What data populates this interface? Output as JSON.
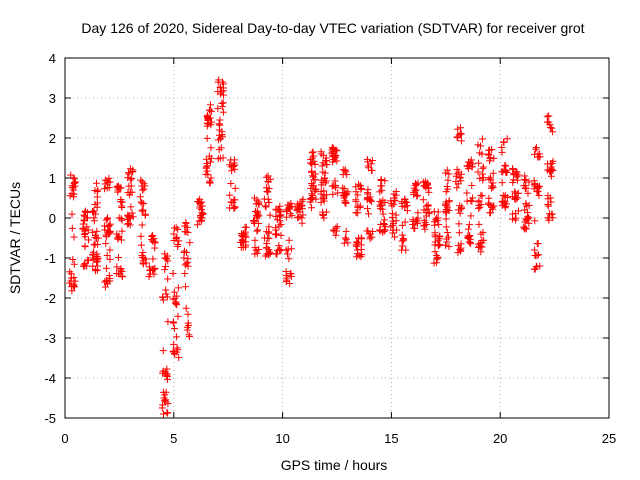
{
  "chart_data": {
    "type": "scatter",
    "title": "Day 126 of 2020, Sidereal Day-to-day VTEC variation (SDTVAR) for receiver grot",
    "xlabel": "GPS time / hours",
    "ylabel": "SDTVAR / TECUs",
    "xlim": [
      0,
      25
    ],
    "ylim": [
      -5,
      4
    ],
    "xticks": [
      0,
      5,
      10,
      15,
      20,
      25
    ],
    "yticks": [
      -5,
      -4,
      -3,
      -2,
      -1,
      0,
      1,
      2,
      3,
      4
    ],
    "grid": true,
    "marker": "+",
    "color": "#ff0000",
    "clusters": [
      {
        "x": 0.35,
        "y": [
          0.7,
          0.9,
          -1.5,
          -1.7
        ]
      },
      {
        "x": 0.95,
        "y": [
          0.0,
          -0.3,
          -1.2
        ]
      },
      {
        "x": 1.4,
        "y": [
          0.7,
          0.1,
          -0.5,
          -0.9,
          -1.2
        ]
      },
      {
        "x": 1.95,
        "y": [
          0.9,
          0.0,
          -0.3,
          -0.8,
          -1.6
        ]
      },
      {
        "x": 2.5,
        "y": [
          0.7,
          0.3,
          -0.5,
          -1.4
        ]
      },
      {
        "x": 3.0,
        "y": [
          1.1,
          0.8,
          0.0
        ]
      },
      {
        "x": 3.6,
        "y": [
          0.8,
          0.2,
          -1.0
        ]
      },
      {
        "x": 4.0,
        "y": [
          -0.6,
          -1.3
        ]
      },
      {
        "x": 4.6,
        "y": [
          -1.0,
          -1.9,
          -3.9,
          -4.5,
          -4.9
        ]
      },
      {
        "x": 5.1,
        "y": [
          -0.4,
          -2.1,
          -2.6,
          -3.4
        ]
      },
      {
        "x": 5.6,
        "y": [
          -0.2,
          -1.0,
          -2.8
        ]
      },
      {
        "x": 6.2,
        "y": [
          0.3,
          0.0
        ]
      },
      {
        "x": 6.6,
        "y": [
          2.7,
          2.5,
          1.4,
          1.0
        ]
      },
      {
        "x": 7.15,
        "y": [
          3.4,
          3.1,
          2.2,
          1.5
        ]
      },
      {
        "x": 7.7,
        "y": [
          1.3,
          0.4
        ]
      },
      {
        "x": 8.2,
        "y": [
          -0.4,
          -0.6
        ]
      },
      {
        "x": 8.8,
        "y": [
          0.5,
          0.0,
          -0.9
        ]
      },
      {
        "x": 9.3,
        "y": [
          0.9,
          0.3,
          -0.5,
          -0.9
        ]
      },
      {
        "x": 9.8,
        "y": [
          0.2,
          -0.3,
          -0.8
        ]
      },
      {
        "x": 10.3,
        "y": [
          0.2,
          -0.9,
          -1.5
        ]
      },
      {
        "x": 10.8,
        "y": [
          0.3,
          0.0
        ]
      },
      {
        "x": 11.4,
        "y": [
          1.5,
          1.1,
          0.7,
          0.4
        ]
      },
      {
        "x": 11.9,
        "y": [
          1.5,
          1.0,
          0.5,
          0.0
        ]
      },
      {
        "x": 12.4,
        "y": [
          1.7,
          1.4,
          0.8,
          -0.3
        ]
      },
      {
        "x": 12.9,
        "y": [
          1.2,
          0.5,
          -0.5
        ]
      },
      {
        "x": 13.5,
        "y": [
          0.8,
          0.3,
          -0.6,
          -0.8
        ]
      },
      {
        "x": 14.0,
        "y": [
          1.3,
          0.6,
          -0.4
        ]
      },
      {
        "x": 14.6,
        "y": [
          0.8,
          0.3,
          -0.3
        ]
      },
      {
        "x": 15.1,
        "y": [
          0.5,
          -0.3
        ]
      },
      {
        "x": 15.6,
        "y": [
          0.3,
          -0.7
        ]
      },
      {
        "x": 16.1,
        "y": [
          0.7,
          -0.1
        ]
      },
      {
        "x": 16.6,
        "y": [
          0.8,
          0.3,
          -0.2
        ]
      },
      {
        "x": 17.1,
        "y": [
          0.0,
          -0.6,
          -1.0
        ]
      },
      {
        "x": 17.6,
        "y": [
          1.1,
          0.3,
          -0.6
        ]
      },
      {
        "x": 18.1,
        "y": [
          2.1,
          1.0,
          0.2,
          -0.8
        ]
      },
      {
        "x": 18.6,
        "y": [
          1.4,
          0.5,
          -0.6
        ]
      },
      {
        "x": 19.1,
        "y": [
          1.8,
          1.1,
          0.4,
          -0.7
        ]
      },
      {
        "x": 19.6,
        "y": [
          1.6,
          0.8,
          0.3
        ]
      },
      {
        "x": 20.2,
        "y": [
          1.9,
          1.3,
          0.4
        ]
      },
      {
        "x": 20.7,
        "y": [
          1.1,
          0.5,
          0.1
        ]
      },
      {
        "x": 21.2,
        "y": [
          0.9,
          0.3,
          -0.1
        ]
      },
      {
        "x": 21.7,
        "y": [
          1.6,
          0.8,
          -0.8,
          -1.2
        ]
      },
      {
        "x": 22.3,
        "y": [
          2.4,
          1.2,
          0.4,
          0.0
        ]
      }
    ]
  }
}
